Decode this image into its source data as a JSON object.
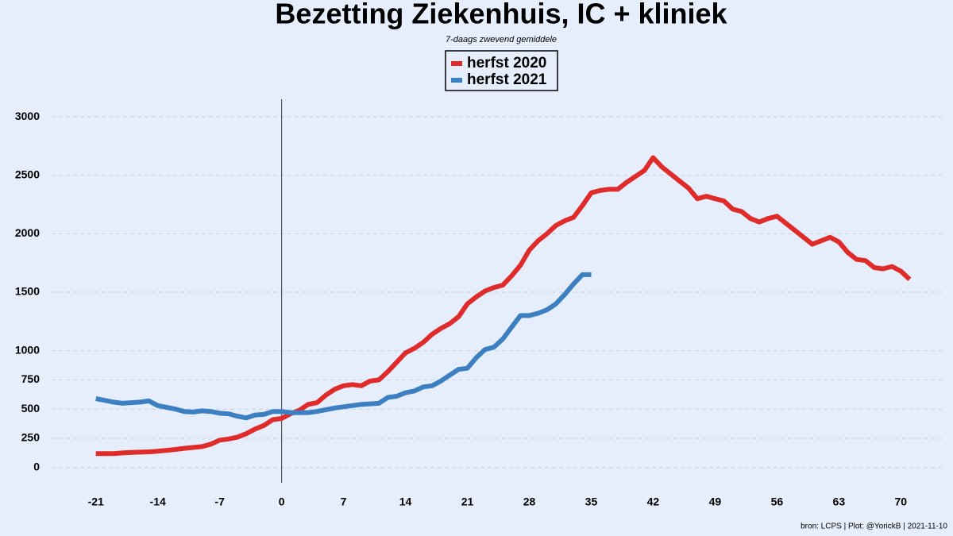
{
  "chart_data": {
    "type": "line",
    "title": "Bezetting Ziekenhuis, IC + kliniek",
    "subtitle": "7-daags zwevend gemiddele",
    "footer": "bron: LCPS  | Plot: @YorickB |  2021-11-10",
    "xlim": [
      -26,
      75
    ],
    "ylim": [
      -130,
      3150
    ],
    "xticks": [
      -21,
      -14,
      -7,
      0,
      7,
      14,
      21,
      28,
      35,
      42,
      49,
      56,
      63,
      70
    ],
    "yticks": [
      0,
      250,
      500,
      750,
      1000,
      1500,
      2000,
      2500,
      3000
    ],
    "vline": 0,
    "grid": true,
    "legend": "top",
    "series": [
      {
        "name": "herfst 2020",
        "color": "#e02b2b",
        "x": [
          -21,
          -20,
          -19,
          -18,
          -17,
          -16,
          -15,
          -14,
          -13,
          -12,
          -11,
          -10,
          -9,
          -8,
          -7,
          -6,
          -5,
          -4,
          -3,
          -2,
          -1,
          0,
          1,
          2,
          3,
          4,
          5,
          6,
          7,
          8,
          9,
          10,
          11,
          12,
          13,
          14,
          15,
          16,
          17,
          18,
          19,
          20,
          21,
          22,
          23,
          24,
          25,
          26,
          27,
          28,
          29,
          30,
          31,
          32,
          33,
          34,
          35,
          36,
          37,
          38,
          39,
          40,
          41,
          42,
          43,
          44,
          45,
          46,
          47,
          48,
          49,
          50,
          51,
          52,
          53,
          54,
          55,
          56,
          57,
          58,
          59,
          60,
          61,
          62,
          63,
          64,
          65,
          66,
          67,
          68,
          69,
          70,
          71
        ],
        "values": [
          120,
          120,
          120,
          125,
          130,
          132,
          135,
          140,
          148,
          155,
          165,
          172,
          180,
          200,
          235,
          245,
          260,
          290,
          330,
          360,
          410,
          420,
          460,
          490,
          540,
          555,
          620,
          670,
          700,
          710,
          700,
          740,
          750,
          820,
          900,
          980,
          1020,
          1070,
          1140,
          1190,
          1230,
          1290,
          1400,
          1460,
          1510,
          1540,
          1560,
          1640,
          1730,
          1860,
          1940,
          2000,
          2070,
          2110,
          2140,
          2240,
          2350,
          2370,
          2380,
          2380,
          2440,
          2490,
          2540,
          2650,
          2570,
          2510,
          2450,
          2390,
          2300,
          2320,
          2300,
          2280,
          2210,
          2190,
          2130,
          2100,
          2130,
          2150,
          2090,
          2030,
          1970,
          1910,
          1940,
          1970,
          1930,
          1840,
          1780,
          1770,
          1710,
          1700,
          1720,
          1680,
          1610
        ]
      },
      {
        "name": "herfst 2021",
        "color": "#3d80c2",
        "x": [
          -21,
          -20,
          -19,
          -18,
          -17,
          -16,
          -15,
          -14,
          -13,
          -12,
          -11,
          -10,
          -9,
          -8,
          -7,
          -6,
          -5,
          -4,
          -3,
          -2,
          -1,
          0,
          1,
          2,
          3,
          4,
          5,
          6,
          7,
          8,
          9,
          10,
          11,
          12,
          13,
          14,
          15,
          16,
          17,
          18,
          19,
          20,
          21,
          22,
          23,
          24,
          25,
          26,
          27,
          28,
          29,
          30,
          31,
          32,
          33,
          34,
          35
        ],
        "values": [
          590,
          575,
          560,
          550,
          555,
          560,
          570,
          530,
          515,
          500,
          480,
          475,
          485,
          480,
          465,
          460,
          440,
          425,
          450,
          455,
          480,
          480,
          470,
          470,
          470,
          480,
          495,
          510,
          520,
          530,
          540,
          545,
          550,
          600,
          610,
          640,
          655,
          690,
          700,
          740,
          790,
          840,
          850,
          940,
          1010,
          1030,
          1100,
          1200,
          1300,
          1300,
          1320,
          1350,
          1400,
          1480,
          1570,
          1650,
          1650
        ]
      }
    ]
  }
}
